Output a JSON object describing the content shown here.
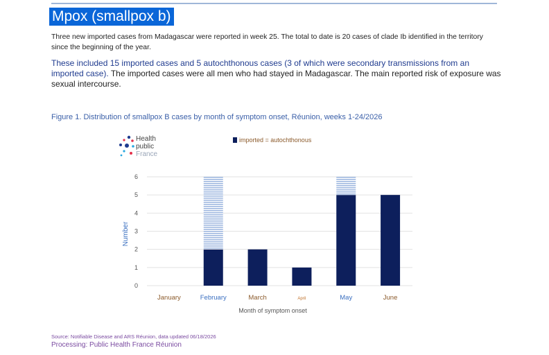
{
  "doc": {
    "title": "Mpox (smallpox b)",
    "para1": "Three new imported cases from Madagascar were reported in week 25. The total to date is 20 cases of clade Ib identified in the territory since the beginning of the year.",
    "para2_blue": "These included 15 imported cases and 5 autochthonous cases (3 of which were secondary transmissions from an imported case).",
    "para2_rest": " The imported cases were all men who had stayed in Madagascar. The main reported risk of exposure was sexual intercourse.",
    "figure_caption": "Figure 1. Distribution of smallpox B cases by month of symptom onset, Réunion, weeks 1-24/2026",
    "logo_lines": [
      "Health",
      "public",
      "France"
    ],
    "legend_label": "imported = autochthonous",
    "source": "Source: Notifiable Disease and ARS Réunion, data updated 06/18/2026",
    "processing": "Processing: Public Health France Réunion"
  },
  "colors": {
    "title_bg": "#0a66d8",
    "bar": "#0d1f5c",
    "striped": "#9fb8e0",
    "axis_text": "#555555"
  },
  "chart_data": {
    "type": "bar",
    "categories": [
      "January",
      "February",
      "March",
      "April",
      "May",
      "June"
    ],
    "series": [
      {
        "values": [
          0,
          2,
          2,
          1,
          5,
          5
        ],
        "style": "solid"
      },
      {
        "values": [
          0,
          4,
          0,
          0,
          1,
          0
        ],
        "style": "striped"
      }
    ],
    "stacked": true,
    "xlabel": "Month of symptom onset",
    "ylabel": "Number",
    "ylim": [
      0,
      6
    ],
    "yticks": [
      0,
      1,
      2,
      3,
      4,
      5,
      6
    ],
    "grid": true,
    "legend": "top",
    "category_colors": [
      "#8b5a2b",
      "#3a6fc0",
      "#8b5a2b",
      "#c0722b",
      "#3a6fc0",
      "#8b5a2b"
    ]
  }
}
